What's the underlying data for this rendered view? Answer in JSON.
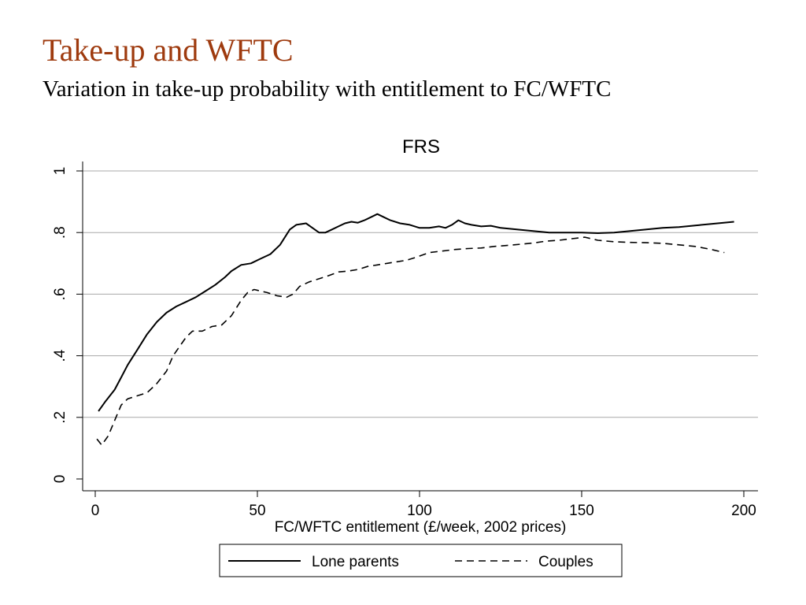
{
  "slide": {
    "title": "Take-up and WFTC",
    "subtitle": "Variation in take-up probability with entitlement to FC/WFTC"
  },
  "chart_data": {
    "type": "line",
    "title": "FRS",
    "xlabel": "FC/WFTC entitlement (£/week, 2002 prices)",
    "ylabel": "",
    "xlim": [
      0,
      200
    ],
    "ylim": [
      0,
      1
    ],
    "x_ticks": [
      0,
      50,
      100,
      150,
      200
    ],
    "x_tick_labels": [
      "0",
      "50",
      "100",
      "150",
      "200"
    ],
    "y_ticks": [
      0,
      0.2,
      0.4,
      0.6,
      0.8,
      1
    ],
    "y_tick_labels": [
      "0",
      ".2",
      ".4",
      ".6",
      ".8",
      "1"
    ],
    "grid": "horizontal",
    "legend_position": "bottom",
    "series": [
      {
        "name": "Lone parents",
        "style": "solid",
        "color": "#000000",
        "points": [
          [
            1,
            0.22
          ],
          [
            3,
            0.25
          ],
          [
            6,
            0.29
          ],
          [
            8,
            0.33
          ],
          [
            10,
            0.37
          ],
          [
            13,
            0.42
          ],
          [
            16,
            0.47
          ],
          [
            19,
            0.51
          ],
          [
            22,
            0.54
          ],
          [
            25,
            0.56
          ],
          [
            28,
            0.575
          ],
          [
            31,
            0.59
          ],
          [
            34,
            0.61
          ],
          [
            37,
            0.63
          ],
          [
            40,
            0.655
          ],
          [
            42,
            0.675
          ],
          [
            45,
            0.695
          ],
          [
            48,
            0.7
          ],
          [
            51,
            0.715
          ],
          [
            54,
            0.73
          ],
          [
            57,
            0.76
          ],
          [
            60,
            0.81
          ],
          [
            62,
            0.825
          ],
          [
            65,
            0.83
          ],
          [
            67,
            0.815
          ],
          [
            69,
            0.8
          ],
          [
            71,
            0.8
          ],
          [
            73,
            0.81
          ],
          [
            75,
            0.82
          ],
          [
            77,
            0.83
          ],
          [
            79,
            0.835
          ],
          [
            81,
            0.832
          ],
          [
            83,
            0.84
          ],
          [
            85,
            0.85
          ],
          [
            87,
            0.86
          ],
          [
            89,
            0.85
          ],
          [
            91,
            0.84
          ],
          [
            94,
            0.83
          ],
          [
            97,
            0.825
          ],
          [
            100,
            0.815
          ],
          [
            103,
            0.815
          ],
          [
            106,
            0.82
          ],
          [
            108,
            0.815
          ],
          [
            110,
            0.825
          ],
          [
            112,
            0.84
          ],
          [
            114,
            0.83
          ],
          [
            116,
            0.825
          ],
          [
            119,
            0.82
          ],
          [
            122,
            0.822
          ],
          [
            125,
            0.815
          ],
          [
            130,
            0.81
          ],
          [
            135,
            0.805
          ],
          [
            140,
            0.8
          ],
          [
            145,
            0.8
          ],
          [
            150,
            0.8
          ],
          [
            155,
            0.798
          ],
          [
            160,
            0.8
          ],
          [
            165,
            0.805
          ],
          [
            170,
            0.81
          ],
          [
            175,
            0.815
          ],
          [
            180,
            0.818
          ],
          [
            185,
            0.823
          ],
          [
            190,
            0.828
          ],
          [
            197,
            0.835
          ]
        ]
      },
      {
        "name": "Couples",
        "style": "dashed",
        "color": "#000000",
        "points": [
          [
            0.5,
            0.13
          ],
          [
            2,
            0.11
          ],
          [
            4,
            0.14
          ],
          [
            6,
            0.19
          ],
          [
            8,
            0.24
          ],
          [
            10,
            0.26
          ],
          [
            13,
            0.27
          ],
          [
            16,
            0.28
          ],
          [
            19,
            0.31
          ],
          [
            22,
            0.35
          ],
          [
            24,
            0.4
          ],
          [
            26,
            0.43
          ],
          [
            28,
            0.46
          ],
          [
            30,
            0.48
          ],
          [
            33,
            0.48
          ],
          [
            36,
            0.495
          ],
          [
            39,
            0.5
          ],
          [
            42,
            0.53
          ],
          [
            45,
            0.58
          ],
          [
            47,
            0.605
          ],
          [
            49,
            0.615
          ],
          [
            51,
            0.61
          ],
          [
            53,
            0.605
          ],
          [
            56,
            0.595
          ],
          [
            59,
            0.59
          ],
          [
            61,
            0.6
          ],
          [
            63,
            0.625
          ],
          [
            66,
            0.64
          ],
          [
            69,
            0.65
          ],
          [
            72,
            0.66
          ],
          [
            75,
            0.672
          ],
          [
            78,
            0.675
          ],
          [
            81,
            0.68
          ],
          [
            84,
            0.69
          ],
          [
            87,
            0.695
          ],
          [
            90,
            0.7
          ],
          [
            93,
            0.705
          ],
          [
            96,
            0.71
          ],
          [
            99,
            0.72
          ],
          [
            103,
            0.735
          ],
          [
            107,
            0.74
          ],
          [
            111,
            0.745
          ],
          [
            115,
            0.748
          ],
          [
            119,
            0.75
          ],
          [
            123,
            0.755
          ],
          [
            127,
            0.758
          ],
          [
            131,
            0.762
          ],
          [
            135,
            0.766
          ],
          [
            139,
            0.772
          ],
          [
            143,
            0.775
          ],
          [
            147,
            0.78
          ],
          [
            151,
            0.785
          ],
          [
            155,
            0.775
          ],
          [
            160,
            0.77
          ],
          [
            165,
            0.768
          ],
          [
            170,
            0.767
          ],
          [
            175,
            0.765
          ],
          [
            180,
            0.76
          ],
          [
            185,
            0.755
          ],
          [
            190,
            0.745
          ],
          [
            194,
            0.735
          ]
        ]
      }
    ]
  }
}
